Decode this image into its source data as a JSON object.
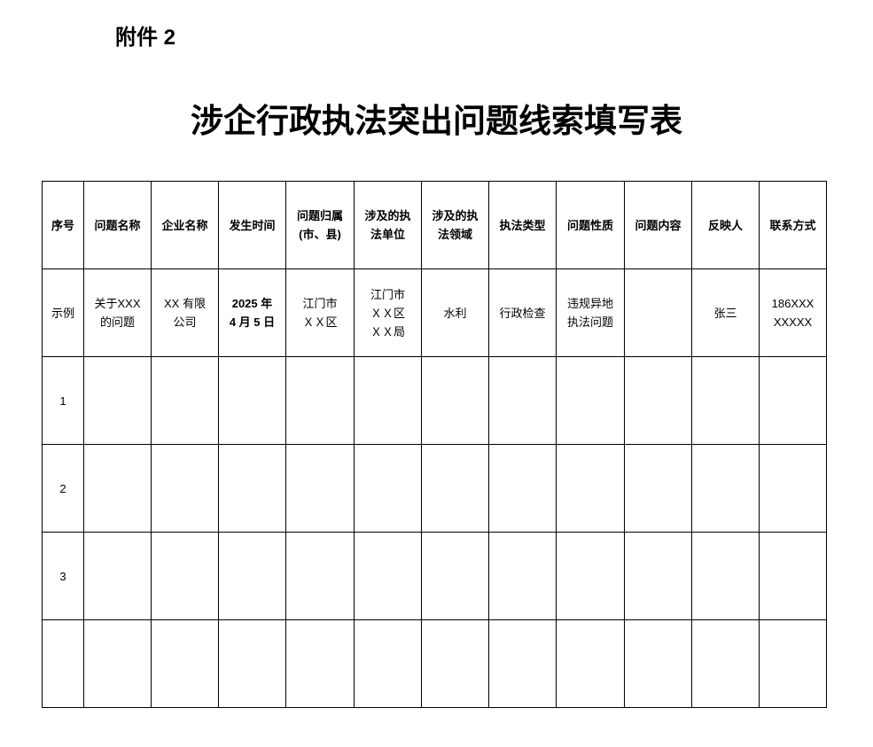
{
  "attachment_label": "附件 2",
  "title": "涉企行政执法突出问题线索填写表",
  "table": {
    "headers": [
      "序号",
      "问题名称",
      "企业名称",
      "发生时间",
      "问题归属\n(市、县)",
      "涉及的执\n法单位",
      "涉及的执\n法领域",
      "执法类型",
      "问题性质",
      "问题内容",
      "反映人",
      "联系方式"
    ],
    "rows": [
      [
        "示例",
        "关于XXX\n的问题",
        "XX 有限\n公司",
        "2025 年\n4 月 5 日",
        "江门市\nＸＸ区",
        "江门市\nＸＸ区\nＸＸ局",
        "水利",
        "行政检查",
        "违规异地\n执法问题",
        "",
        "张三",
        "186XXX\nXXXXX"
      ],
      [
        "1",
        "",
        "",
        "",
        "",
        "",
        "",
        "",
        "",
        "",
        "",
        ""
      ],
      [
        "2",
        "",
        "",
        "",
        "",
        "",
        "",
        "",
        "",
        "",
        "",
        ""
      ],
      [
        "3",
        "",
        "",
        "",
        "",
        "",
        "",
        "",
        "",
        "",
        "",
        ""
      ],
      [
        "",
        "",
        "",
        "",
        "",
        "",
        "",
        "",
        "",
        "",
        "",
        ""
      ]
    ]
  }
}
